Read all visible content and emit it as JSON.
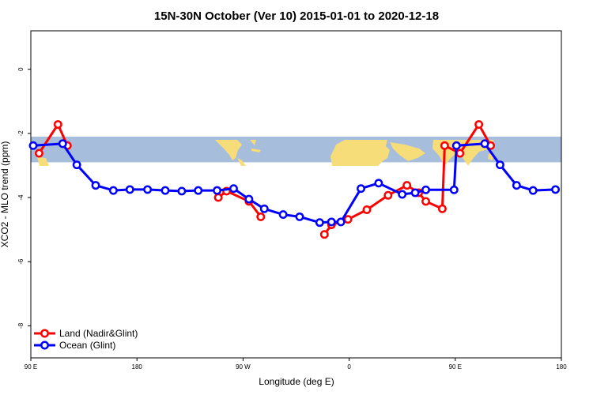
{
  "chart_data": {
    "type": "line",
    "title": "15N-30N October (Ver 10)   2015-01-01 to 2020-12-18",
    "xlabel": "Longitude (deg E)",
    "ylabel": "XCO2 - MLO trend (ppm)",
    "xlim": [
      90,
      450
    ],
    "ylim": [
      -9,
      1.2
    ],
    "x_ticks": [
      {
        "value": 90,
        "label": "90 E"
      },
      {
        "value": 180,
        "label": "180"
      },
      {
        "value": 270,
        "label": "90 W"
      },
      {
        "value": 360,
        "label": "0"
      },
      {
        "value": 450,
        "label": "90 E"
      },
      {
        "value": 540,
        "label": "180"
      }
    ],
    "y_ticks": [
      {
        "value": 0,
        "label": "0"
      },
      {
        "value": -2,
        "label": "-2"
      },
      {
        "value": -4,
        "label": "-4"
      },
      {
        "value": -6,
        "label": "-6"
      },
      {
        "value": -8,
        "label": "-8"
      }
    ],
    "map_band": {
      "ymin": -2.9,
      "ymax": -2.1,
      "ocean_color": "#a6bddb",
      "land_color": "#f7dc7a"
    },
    "legend": {
      "placement": "bottom-left"
    },
    "series": [
      {
        "name": "Land (Nadir&Glint)",
        "color": "#ff0000",
        "segments": [
          {
            "x": [
              97,
              113,
              121
            ],
            "y": [
              -2.62,
              -1.72,
              -2.38
            ]
          },
          {
            "x": [
              249,
              256,
              275,
              285
            ],
            "y": [
              -4.0,
              -3.8,
              -4.12,
              -4.6
            ]
          },
          {
            "x": [
              339,
              345,
              359,
              375,
              393,
              409,
              419,
              425,
              439,
              441,
              454,
              470,
              480
            ],
            "y": [
              -5.15,
              -4.85,
              -4.68,
              -4.38,
              -3.93,
              -3.62,
              -3.85,
              -4.12,
              -4.35,
              -2.38,
              -2.62,
              -1.72,
              -2.38
            ]
          }
        ]
      },
      {
        "name": "Ocean (Glint)",
        "color": "#0000ff",
        "segments": [
          {
            "x": [
              92,
              117,
              129,
              145,
              160,
              174,
              189,
              204,
              218,
              232,
              248,
              262,
              275,
              288,
              304,
              318,
              335,
              345,
              353,
              370,
              385,
              405,
              416,
              425,
              449,
              451,
              475,
              488,
              502,
              516,
              535
            ],
            "y": [
              -2.38,
              -2.32,
              -2.98,
              -3.62,
              -3.78,
              -3.75,
              -3.75,
              -3.78,
              -3.8,
              -3.78,
              -3.78,
              -3.72,
              -4.05,
              -4.35,
              -4.53,
              -4.6,
              -4.78,
              -4.76,
              -4.76,
              -3.72,
              -3.55,
              -3.9,
              -3.85,
              -3.76,
              -3.76,
              -2.38,
              -2.32,
              -2.98,
              -3.62,
              -3.78,
              -3.75
            ]
          }
        ]
      }
    ]
  }
}
